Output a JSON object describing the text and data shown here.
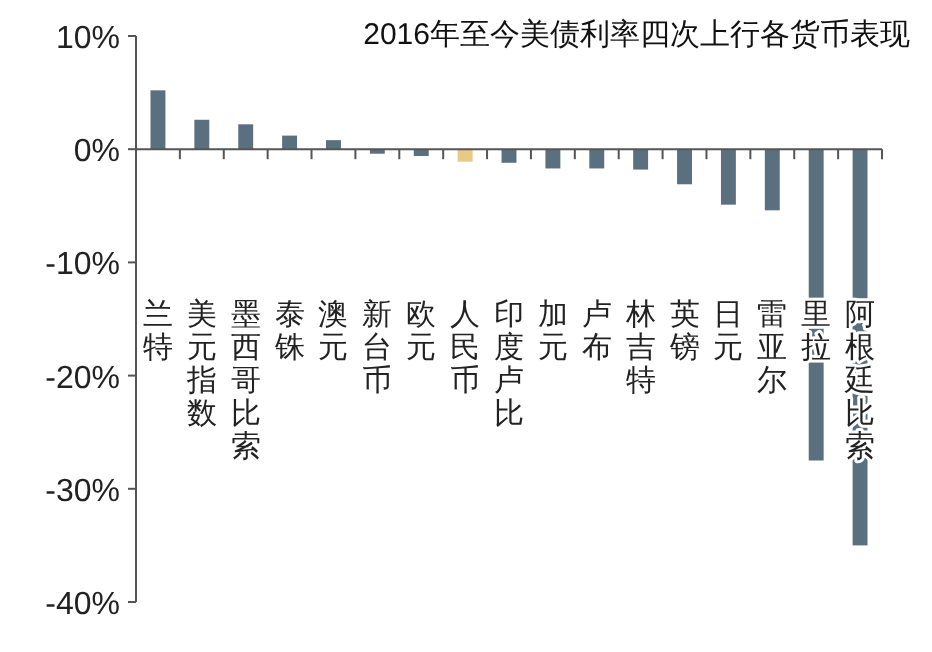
{
  "chart_data": {
    "type": "bar",
    "title": "2016年至今美债利率四次上行各货币表现",
    "categories": [
      "兰特",
      "美元指数",
      "墨西哥比索",
      "泰铢",
      "澳元",
      "新台币",
      "欧元",
      "人民币",
      "印度卢比",
      "加元",
      "卢布",
      "林吉特",
      "英镑",
      "日元",
      "雷亚尔",
      "里拉",
      "阿根廷比索"
    ],
    "values": [
      5.2,
      2.6,
      2.2,
      1.2,
      0.8,
      -0.4,
      -0.6,
      -1.1,
      -1.2,
      -1.7,
      -1.7,
      -1.8,
      -3.1,
      -4.9,
      -5.4,
      -27.5,
      -35.0
    ],
    "colors": [
      "#5b707f",
      "#5b707f",
      "#5b707f",
      "#5b707f",
      "#5b707f",
      "#5b707f",
      "#5b707f",
      "#e9c987",
      "#5b707f",
      "#5b707f",
      "#5b707f",
      "#5b707f",
      "#5b707f",
      "#5b707f",
      "#5b707f",
      "#5b707f",
      "#5b707f"
    ],
    "ylim": [
      -40,
      10
    ],
    "yticks": [
      {
        "value": 10,
        "label": "10%"
      },
      {
        "value": 0,
        "label": "0%"
      },
      {
        "value": -10,
        "label": "-10%"
      },
      {
        "value": -20,
        "label": "-20%"
      },
      {
        "value": -30,
        "label": "-30%"
      },
      {
        "value": -40,
        "label": "-40%"
      }
    ]
  }
}
